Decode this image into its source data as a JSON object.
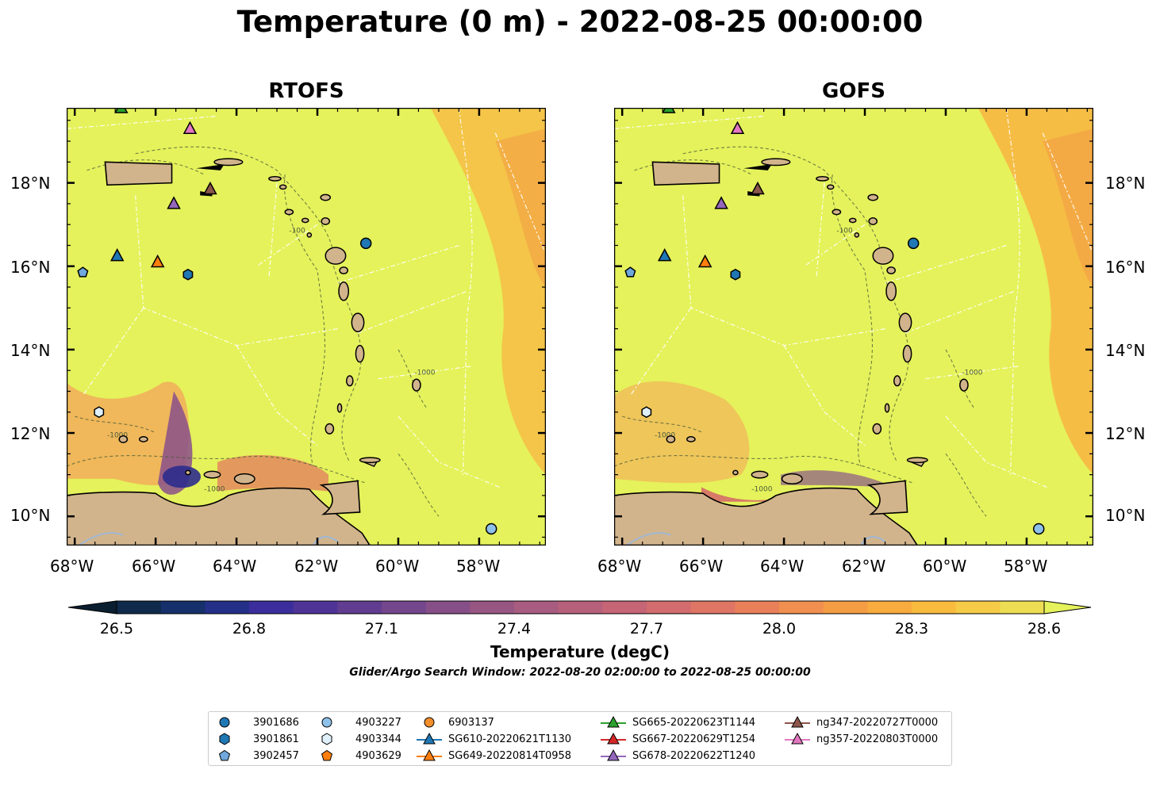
{
  "title": "Temperature (0 m) - 2022-08-25 00:00:00",
  "panels": [
    {
      "title": "RTOFS"
    },
    {
      "title": "GOFS"
    }
  ],
  "axes": {
    "lon_labels": [
      "68°W",
      "66°W",
      "64°W",
      "62°W",
      "60°W",
      "58°W"
    ],
    "lat_labels": [
      "18°N",
      "16°N",
      "14°N",
      "12°N",
      "10°N"
    ],
    "bathymetry_contour_label": "-1000",
    "bathymetry_contour_label_short": "-100"
  },
  "colorbar": {
    "ticks": [
      "26.5",
      "26.8",
      "27.1",
      "27.4",
      "27.7",
      "28.0",
      "28.3",
      "28.6"
    ],
    "min": 26.5,
    "max": 28.6,
    "extend": "both",
    "label": "Temperature (degC)",
    "colors": [
      "#0a1e30",
      "#0f2a4a",
      "#15306a",
      "#242f88",
      "#3b2e9c",
      "#4e3497",
      "#613d91",
      "#74468c",
      "#874f88",
      "#985683",
      "#a85c80",
      "#b7607c",
      "#c56576",
      "#d36c6e",
      "#df7564",
      "#e9805a",
      "#f08f4f",
      "#f59d45",
      "#f8ab3e",
      "#f9bb3e",
      "#f5cb48",
      "#eddd52",
      "#e5f25b"
    ]
  },
  "search_window": "Glider/Argo Search Window: 2022-08-20 02:00:00 to 2022-08-25 00:00:00",
  "legend": [
    {
      "label": "3901686",
      "marker": "circle",
      "color": "#1f77b4"
    },
    {
      "label": "3901861",
      "marker": "hexagon",
      "color": "#1f77b4"
    },
    {
      "label": "3902457",
      "marker": "pentagon",
      "color": "#6fa8dc"
    },
    {
      "label": "4903227",
      "marker": "circle",
      "color": "#8ec1e9"
    },
    {
      "label": "4903344",
      "marker": "hexagon",
      "color": "#dff0fb"
    },
    {
      "label": "4903629",
      "marker": "pentagon",
      "color": "#ff7f0e"
    },
    {
      "label": "6903137",
      "marker": "circle",
      "color": "#f28e2b"
    },
    {
      "label": "SG610-20220621T1130",
      "marker": "triangle-line",
      "color": "#1f77b4"
    },
    {
      "label": "SG649-20220814T0958",
      "marker": "triangle-line",
      "color": "#ff7f0e"
    },
    {
      "label": "SG665-20220623T1144",
      "marker": "triangle-line",
      "color": "#2ca02c"
    },
    {
      "label": "SG667-20220629T1254",
      "marker": "triangle-line",
      "color": "#d62728"
    },
    {
      "label": "SG678-20220622T1240",
      "marker": "triangle-line",
      "color": "#9467bd"
    },
    {
      "label": "ng347-20220727T0000",
      "marker": "triangle-line",
      "color": "#8c564b"
    },
    {
      "label": "ng357-20220803T0000",
      "marker": "triangle-line",
      "color": "#e377c2"
    }
  ],
  "observations": [
    {
      "id": "3901686",
      "lon": -60.8,
      "lat": 16.55
    },
    {
      "id": "3901861",
      "lon": -65.2,
      "lat": 15.8
    },
    {
      "id": "3902457",
      "lon": -67.8,
      "lat": 15.85
    },
    {
      "id": "4903227",
      "lon": -57.7,
      "lat": 9.7
    },
    {
      "id": "4903344",
      "lon": -67.4,
      "lat": 12.5
    },
    {
      "id": "SG610-20220621T1130",
      "lon": -66.95,
      "lat": 16.25
    },
    {
      "id": "SG649-20220814T0958",
      "lon": -65.95,
      "lat": 16.1
    },
    {
      "id": "SG665-20220623T1144",
      "lon": -66.85,
      "lat": 19.8
    },
    {
      "id": "SG678-20220622T1240",
      "lon": -65.55,
      "lat": 17.5
    },
    {
      "id": "ng347-20220727T0000",
      "lon": -64.65,
      "lat": 17.85
    },
    {
      "id": "ng357-20220803T0000",
      "lon": -65.15,
      "lat": 19.3
    }
  ],
  "colors": {
    "land": "#d2b48c",
    "sea_base": "#e5f25b",
    "warm_patch": "#f7b944",
    "river": "#9fb8d4"
  }
}
